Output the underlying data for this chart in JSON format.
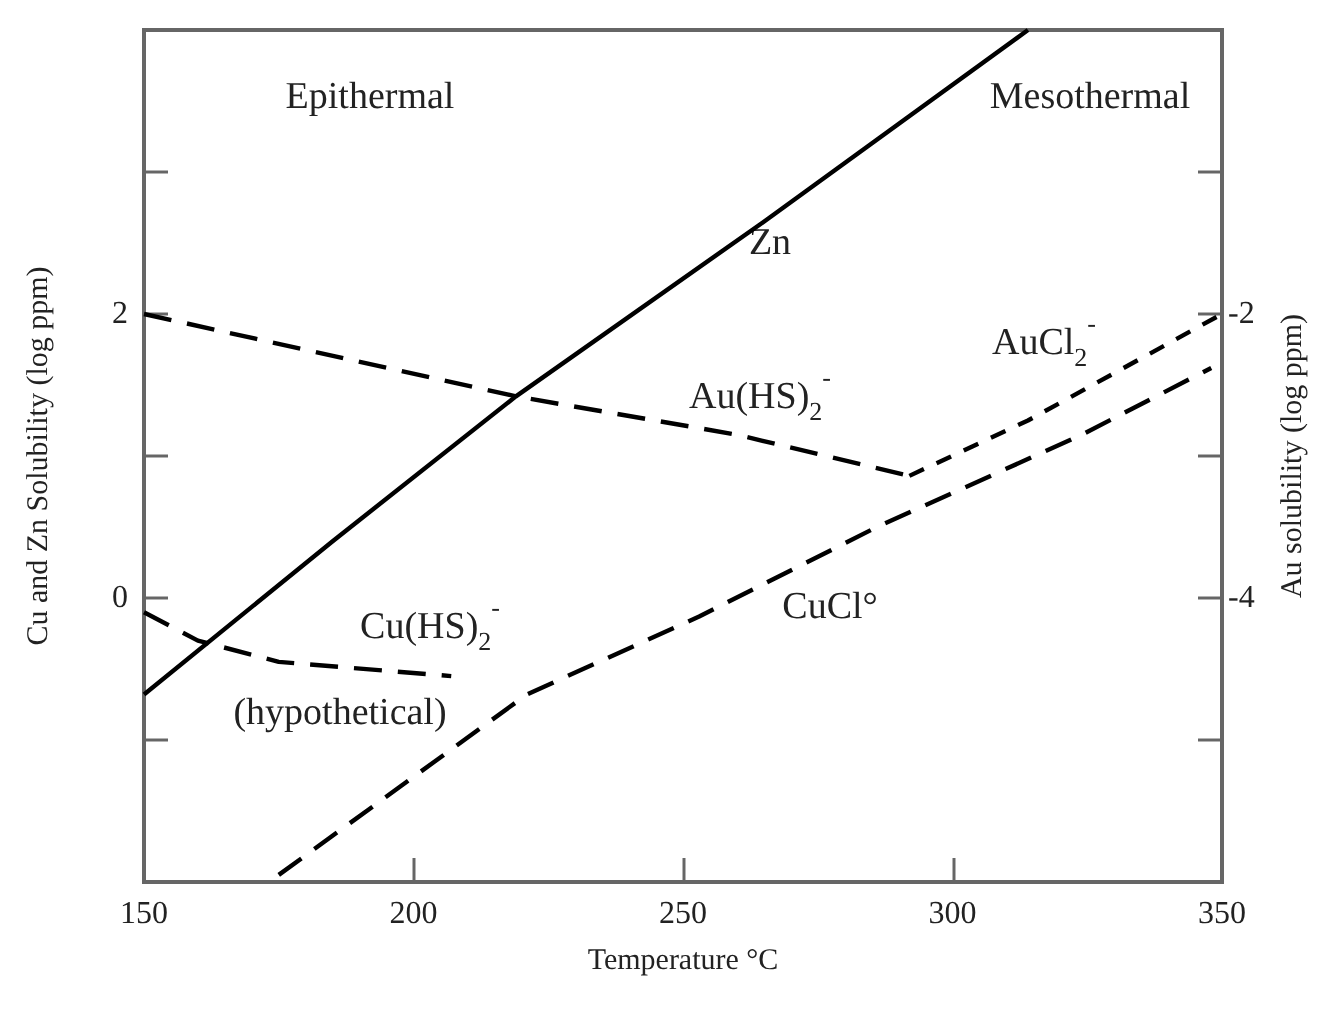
{
  "chart_data": {
    "type": "line",
    "xlabel": "Temperature °C",
    "ylabel": "Cu and Zn Solubility (log ppm)",
    "y2label": "Au solubility (log ppm)",
    "xlim": [
      150,
      350
    ],
    "xticks": [
      150,
      200,
      250,
      300,
      350
    ],
    "ylim": [
      -2,
      4
    ],
    "yticks": [
      {
        "value": -1,
        "label": null
      },
      0,
      {
        "value": 1,
        "label": null
      },
      2,
      {
        "value": 3,
        "label": null
      }
    ],
    "y2lim": [
      -6,
      0
    ],
    "y2ticks": [
      {
        "value": -5,
        "label": null
      },
      -4,
      {
        "value": -3,
        "label": null
      },
      -2,
      {
        "value": -1,
        "label": null
      }
    ],
    "grid": false,
    "legend": false,
    "marker": "none",
    "series": [
      {
        "name": "Zn",
        "color": "#000000",
        "line_style": "solid",
        "x": [
          150,
          185,
          219,
          265,
          314
        ],
        "values": [
          -0.68,
          0.4,
          1.42,
          2.65,
          4
        ]
      },
      {
        "name": "Au(HS)$_{2}$$^{-}$",
        "color": "#000000",
        "line_style": "dashed",
        "axis": "y2",
        "x": [
          150,
          219,
          260,
          292
        ],
        "values": [
          -2,
          -2.58,
          -2.85,
          -3.14
        ]
      },
      {
        "name": "AuCl$_{2}$$^{-}$",
        "color": "#000000",
        "line_style": "dotted",
        "axis": "y2",
        "x": [
          292,
          314,
          350
        ],
        "values": [
          -3.14,
          -2.75,
          -2
        ]
      },
      {
        "name": "Cu(HS)$_{2}$$^{-}$",
        "color": "#000000",
        "line_style": "dashed",
        "x": [
          150,
          160,
          175,
          207
        ],
        "values": [
          -0.1,
          -0.3,
          -0.45,
          -0.55
        ]
      },
      {
        "name": "CuCl°",
        "color": "#000000",
        "line_style": "dashed",
        "x": [
          175,
          221,
          253,
          286,
          324,
          348
        ],
        "values": [
          -1.95,
          -0.68,
          -0.13,
          0.5,
          1.15,
          1.62
        ]
      }
    ],
    "annotations": [
      "Epithermal",
      "Mesothermal",
      "(hypothetical)"
    ]
  }
}
